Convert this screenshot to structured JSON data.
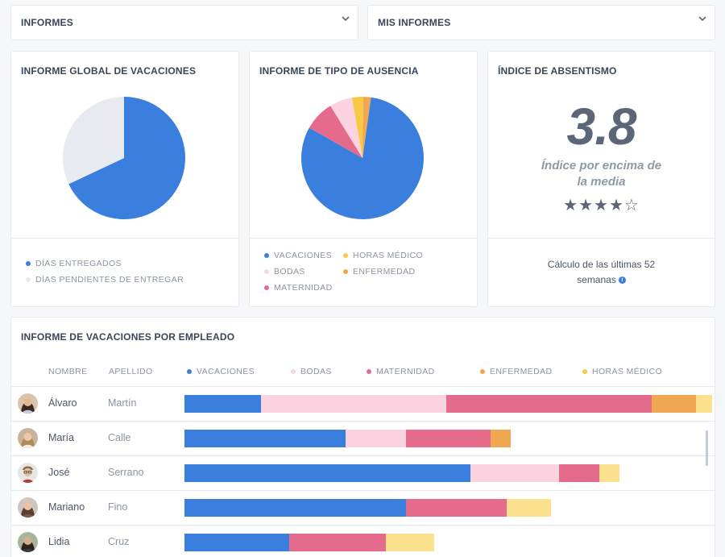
{
  "colors": {
    "vacaciones": "#3a7fdd",
    "bodas": "#fcd3e0",
    "maternidad": "#e56b8c",
    "enfermedad": "#f0a752",
    "horas_medico": "#fbe18e",
    "pendientes": "#e9eaf0"
  },
  "dropdowns": {
    "informes": {
      "label": "INFORMES",
      "icon": "chevron-down-icon"
    },
    "mis_informes": {
      "label": "MIS INFORMES",
      "icon": "chevron-down-icon"
    }
  },
  "global_vacations": {
    "title": "INFORME GLOBAL DE VACACIONES",
    "legend": [
      "DÍAS ENTREGADOS",
      "DÍAS PENDIENTES DE ENTREGAR"
    ]
  },
  "absence_type": {
    "title": "INFORME DE TIPO DE AUSENCIA",
    "legend": {
      "vacaciones": "VACACIONES",
      "bodas": "BODAS",
      "maternidad": "MATERNIDAD",
      "horas_medico": "HORAS MÉDICO",
      "enfermedad": "ENFERMEDAD"
    }
  },
  "absenteeism": {
    "title": "ÍNDICE DE ABSENTISMO",
    "value": "3.8",
    "subtitle_line1": "Índice por encima de",
    "subtitle_line2": "la media",
    "stars": "★★★★☆",
    "rating": 4,
    "calc_line1": "Cálculo de las últimas 52",
    "calc_line2": "semanas",
    "info_icon": "i"
  },
  "employees": {
    "title": "INFORME DE VACACIONES POR EMPLEADO",
    "headers": {
      "nombre": "NOMBRE",
      "apellido": "APELLIDO",
      "vacaciones": "VACACIONES",
      "bodas": "BODAS",
      "maternidad": "MATERNIDAD",
      "enfermedad": "ENFERMEDAD",
      "horas_medico": "HORAS MÉDICO"
    },
    "rows": [
      {
        "nombre": "Álvaro",
        "apellido": "Martín"
      },
      {
        "nombre": "María",
        "apellido": "Calle"
      },
      {
        "nombre": "José",
        "apellido": "Serrano"
      },
      {
        "nombre": "Mariano",
        "apellido": "Fino"
      },
      {
        "nombre": "Lidia",
        "apellido": "Cruz"
      }
    ]
  },
  "chart_data": [
    {
      "type": "pie",
      "labels": [
        "DÍAS ENTREGADOS",
        "DÍAS PENDIENTES DE ENTREGAR"
      ],
      "values": [
        68,
        32
      ]
    },
    {
      "type": "pie",
      "labels": [
        "VACACIONES",
        "MATERNIDAD",
        "BODAS",
        "HORAS MÉDICO",
        "ENFERMEDAD"
      ],
      "values": [
        81,
        8,
        6,
        3,
        2
      ]
    },
    {
      "type": "bar",
      "orientation": "horizontal-stacked",
      "categories": [
        "Álvaro",
        "María",
        "José",
        "Mariano",
        "Lidia"
      ],
      "series": [
        {
          "name": "VACACIONES",
          "values": [
            19,
            40,
            71,
            55,
            26
          ]
        },
        {
          "name": "BODAS",
          "values": [
            46,
            15,
            22,
            0,
            0
          ]
        },
        {
          "name": "MATERNIDAD",
          "values": [
            51,
            21,
            10,
            25,
            24
          ]
        },
        {
          "name": "ENFERMEDAD",
          "values": [
            11,
            5,
            0,
            0,
            0
          ]
        },
        {
          "name": "HORAS MÉDICO",
          "values": [
            4,
            0,
            5,
            11,
            12
          ]
        }
      ]
    }
  ]
}
